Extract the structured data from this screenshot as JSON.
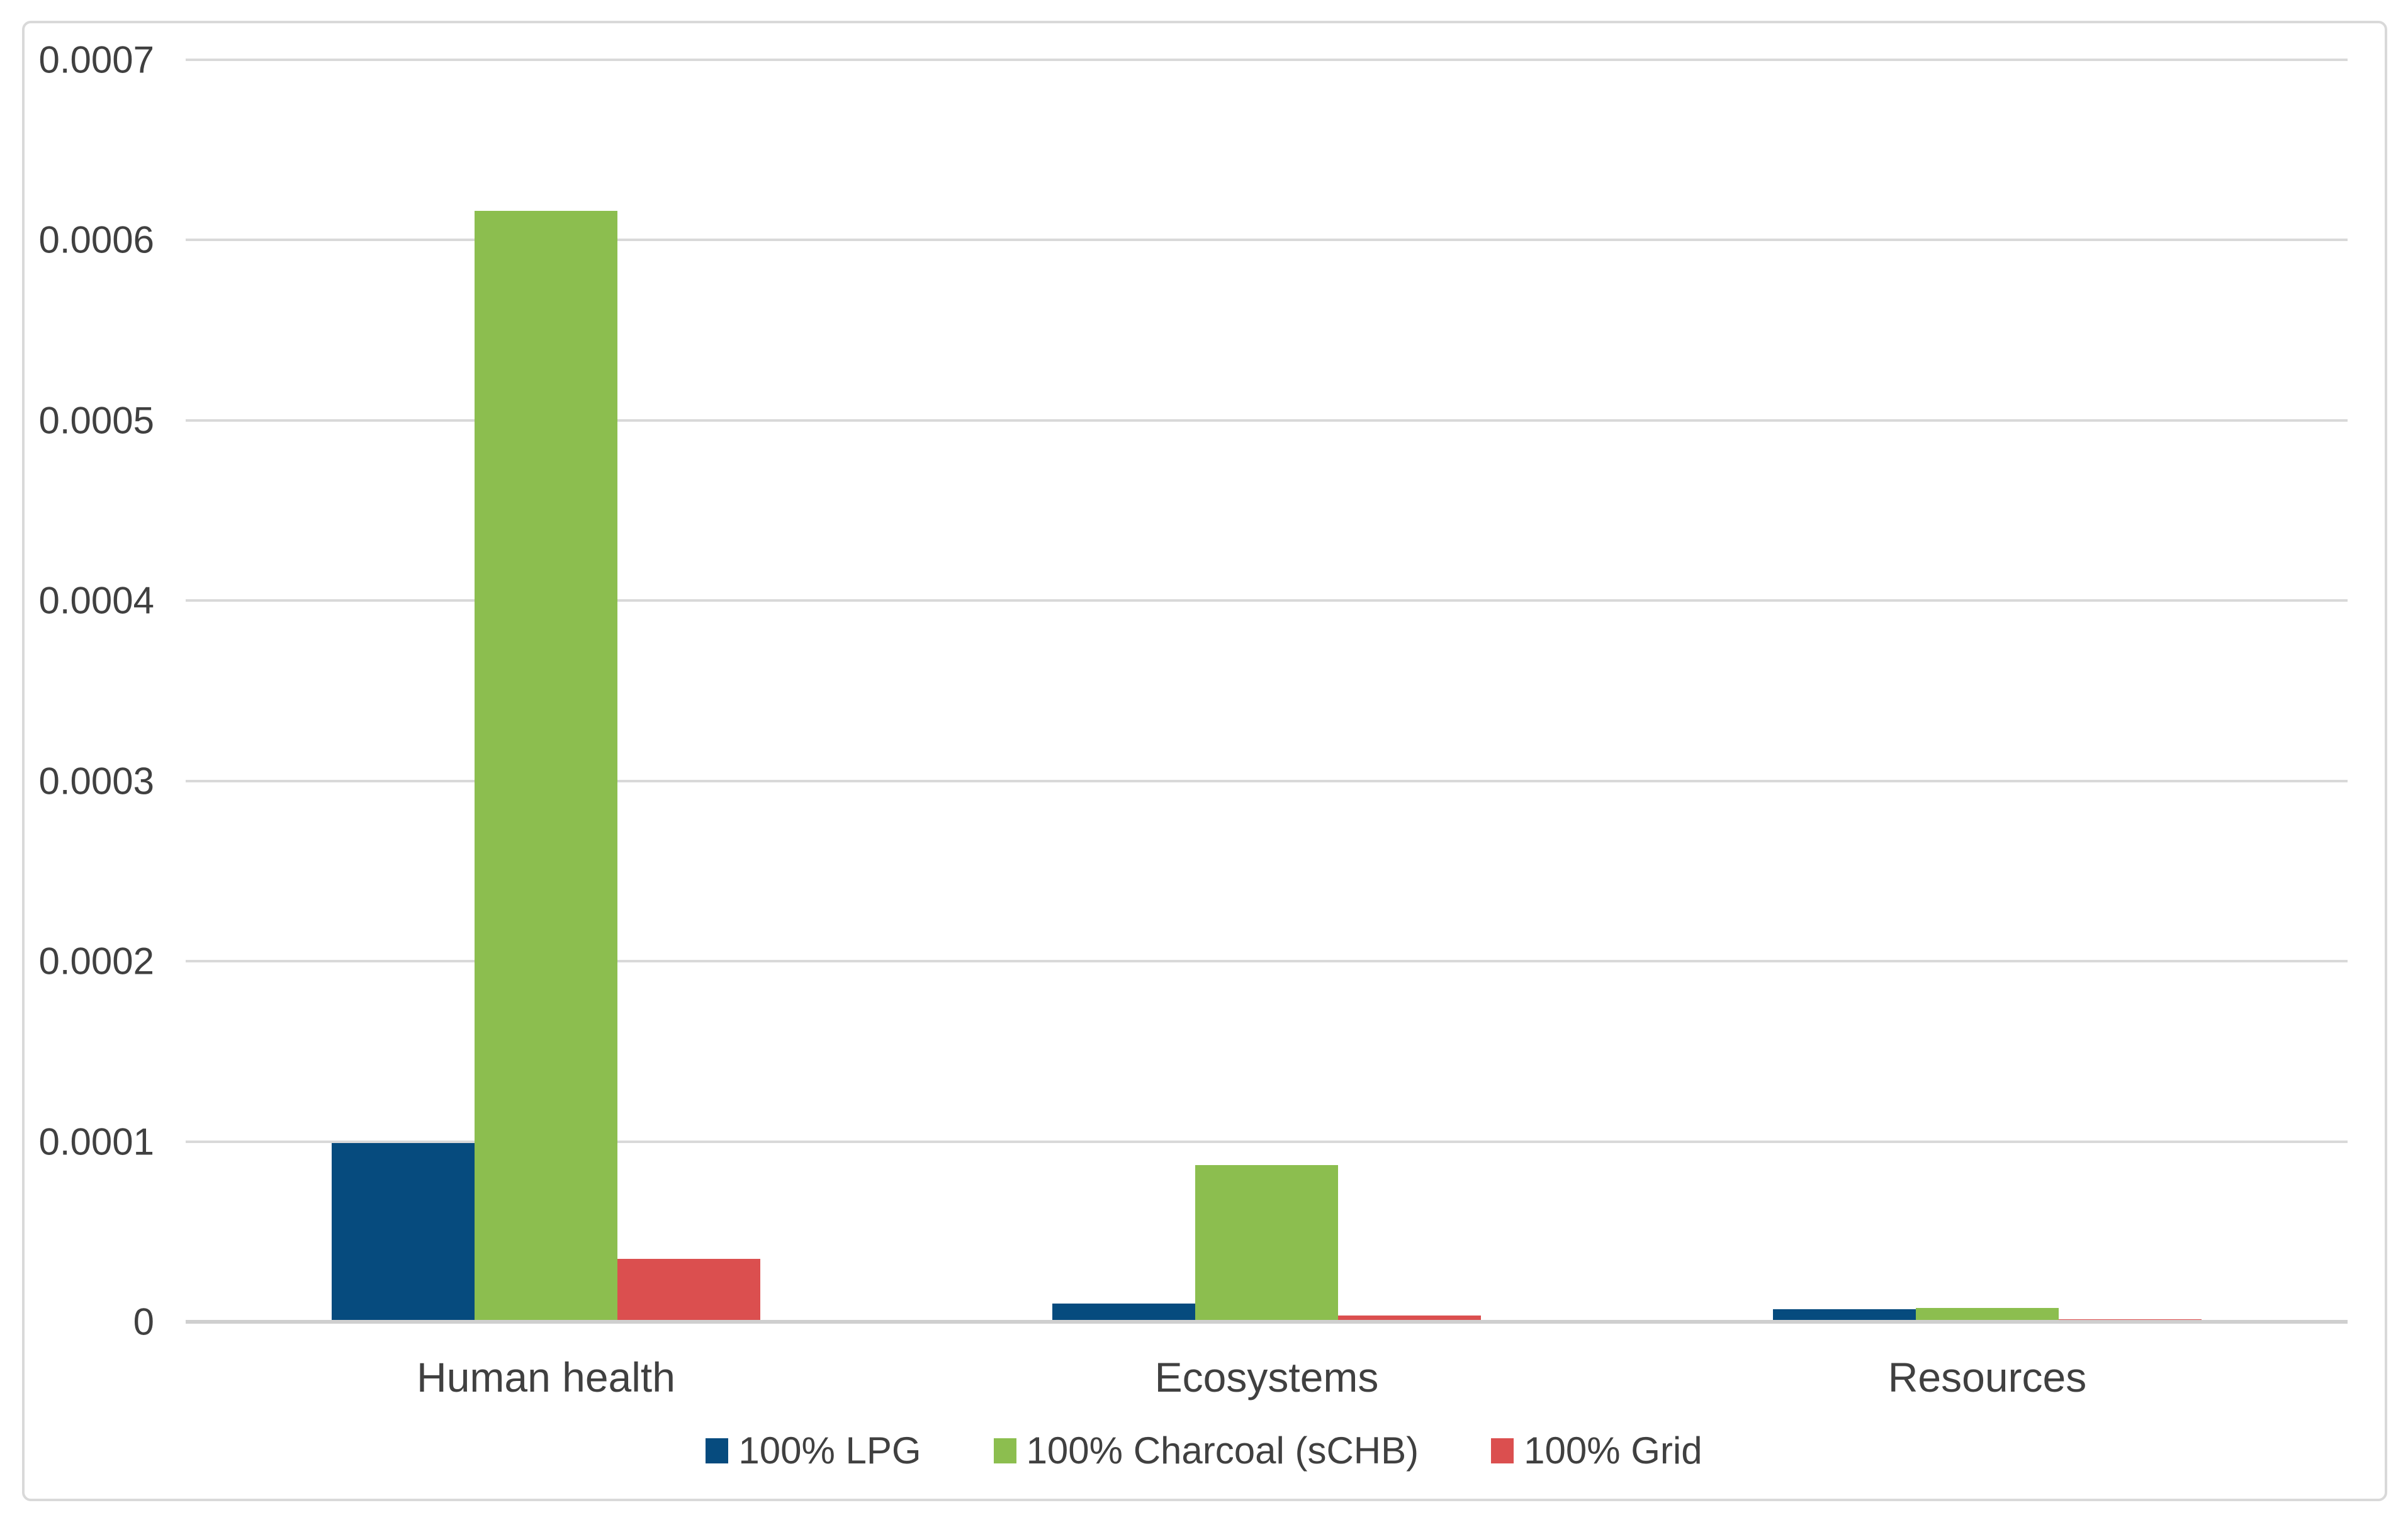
{
  "chart_data": {
    "type": "bar",
    "title": "",
    "xlabel": "",
    "ylabel": "",
    "categories": [
      "Human health",
      "Ecosystems",
      "Resources"
    ],
    "series": [
      {
        "name": "100% LPG",
        "color": "#064B7E",
        "values": [
          9.8e-05,
          9e-06,
          6e-06
        ]
      },
      {
        "name": "100% Charcoal (sCHB)",
        "color": "#8CBE4F",
        "values": [
          0.000615,
          8.6e-05,
          6.5e-06
        ]
      },
      {
        "name": "100% Grid",
        "color": "#DB4F4F",
        "values": [
          3.4e-05,
          2.5e-06,
          3e-07
        ]
      }
    ],
    "ylim": [
      0,
      0.0007
    ],
    "ytick_step": 0.0001,
    "ytick_labels": [
      "0",
      "0.0001",
      "0.0002",
      "0.0003",
      "0.0004",
      "0.0005",
      "0.0006",
      "0.0007"
    ],
    "grid": true,
    "legend_position": "bottom"
  },
  "colors": {
    "gridline": "#D9D9D9",
    "axis_line": "#CFCFCF",
    "frame_border": "#D9D9D9",
    "text": "#404040",
    "background": "#FFFFFF"
  }
}
